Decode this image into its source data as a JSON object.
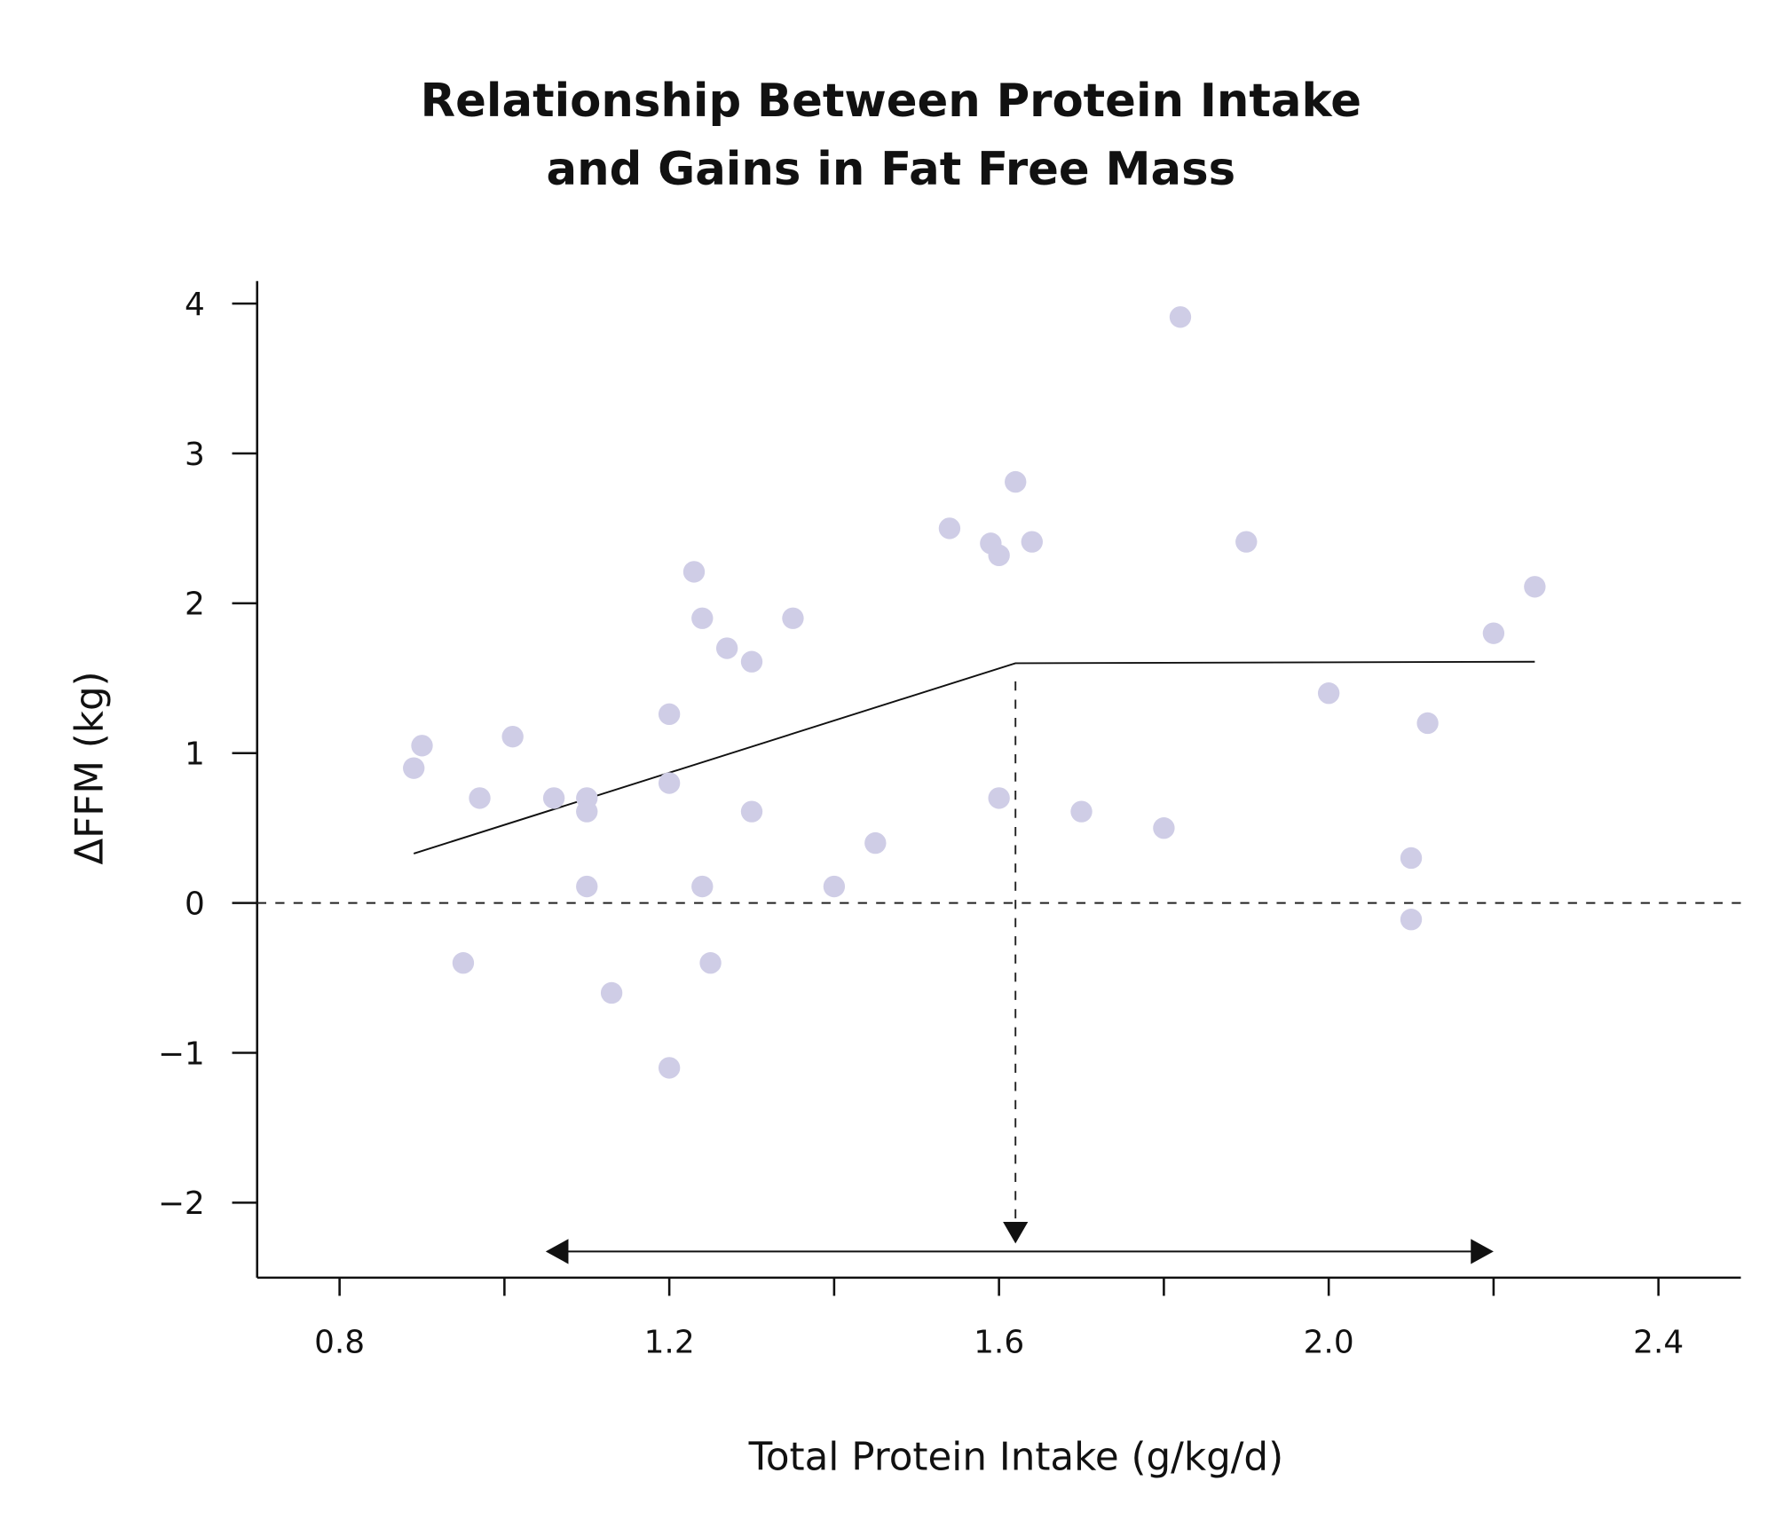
{
  "chart_data": {
    "type": "scatter",
    "title": [
      "Relationship Between Protein Intake",
      "and Gains in Fat Free Mass"
    ],
    "xlabel": "Total Protein Intake (g/kg/d)",
    "ylabel": "ΔFFM (kg)",
    "xlim": [
      0.7,
      2.5
    ],
    "ylim": [
      -2.5,
      4.15
    ],
    "x_ticks": [
      0.8,
      1.0,
      1.2,
      1.4,
      1.6,
      1.8,
      2.0,
      2.2,
      2.4
    ],
    "x_tick_labels": [
      "0.8",
      "",
      "1.2",
      "",
      "1.6",
      "",
      "2.0",
      "",
      "2.4"
    ],
    "y_ticks": [
      4,
      3,
      2,
      1,
      0,
      -1,
      -2
    ],
    "y_tick_labels": [
      "4",
      "3",
      "2",
      "1",
      "0",
      "−1",
      "−2"
    ],
    "grid": false,
    "point_color": "#cfcde6",
    "points": [
      [
        0.89,
        0.9
      ],
      [
        0.9,
        1.05
      ],
      [
        0.95,
        -0.4
      ],
      [
        0.97,
        0.7
      ],
      [
        1.01,
        1.11
      ],
      [
        1.06,
        0.7
      ],
      [
        1.1,
        0.7
      ],
      [
        1.1,
        0.61
      ],
      [
        1.1,
        0.11
      ],
      [
        1.13,
        -0.6
      ],
      [
        1.2,
        1.26
      ],
      [
        1.2,
        0.8
      ],
      [
        1.2,
        -1.1
      ],
      [
        1.23,
        2.21
      ],
      [
        1.24,
        1.9
      ],
      [
        1.24,
        0.11
      ],
      [
        1.25,
        -0.4
      ],
      [
        1.27,
        1.7
      ],
      [
        1.3,
        1.61
      ],
      [
        1.3,
        0.61
      ],
      [
        1.35,
        1.9
      ],
      [
        1.4,
        0.11
      ],
      [
        1.45,
        0.4
      ],
      [
        1.54,
        2.5
      ],
      [
        1.59,
        2.4
      ],
      [
        1.6,
        2.32
      ],
      [
        1.62,
        2.81
      ],
      [
        1.64,
        2.41
      ],
      [
        1.6,
        0.7
      ],
      [
        1.7,
        0.61
      ],
      [
        1.8,
        0.5
      ],
      [
        1.82,
        3.91
      ],
      [
        1.9,
        2.41
      ],
      [
        2.0,
        1.4
      ],
      [
        2.1,
        0.3
      ],
      [
        2.1,
        -0.11
      ],
      [
        2.12,
        1.2
      ],
      [
        2.2,
        1.8
      ],
      [
        2.25,
        2.11
      ]
    ],
    "fit_line": [
      [
        0.89,
        0.33
      ],
      [
        1.62,
        1.6
      ],
      [
        2.25,
        1.61
      ]
    ],
    "breakpoint_x": 1.62,
    "range_arrow": [
      1.05,
      2.2
    ],
    "reference_line_y": 0
  }
}
